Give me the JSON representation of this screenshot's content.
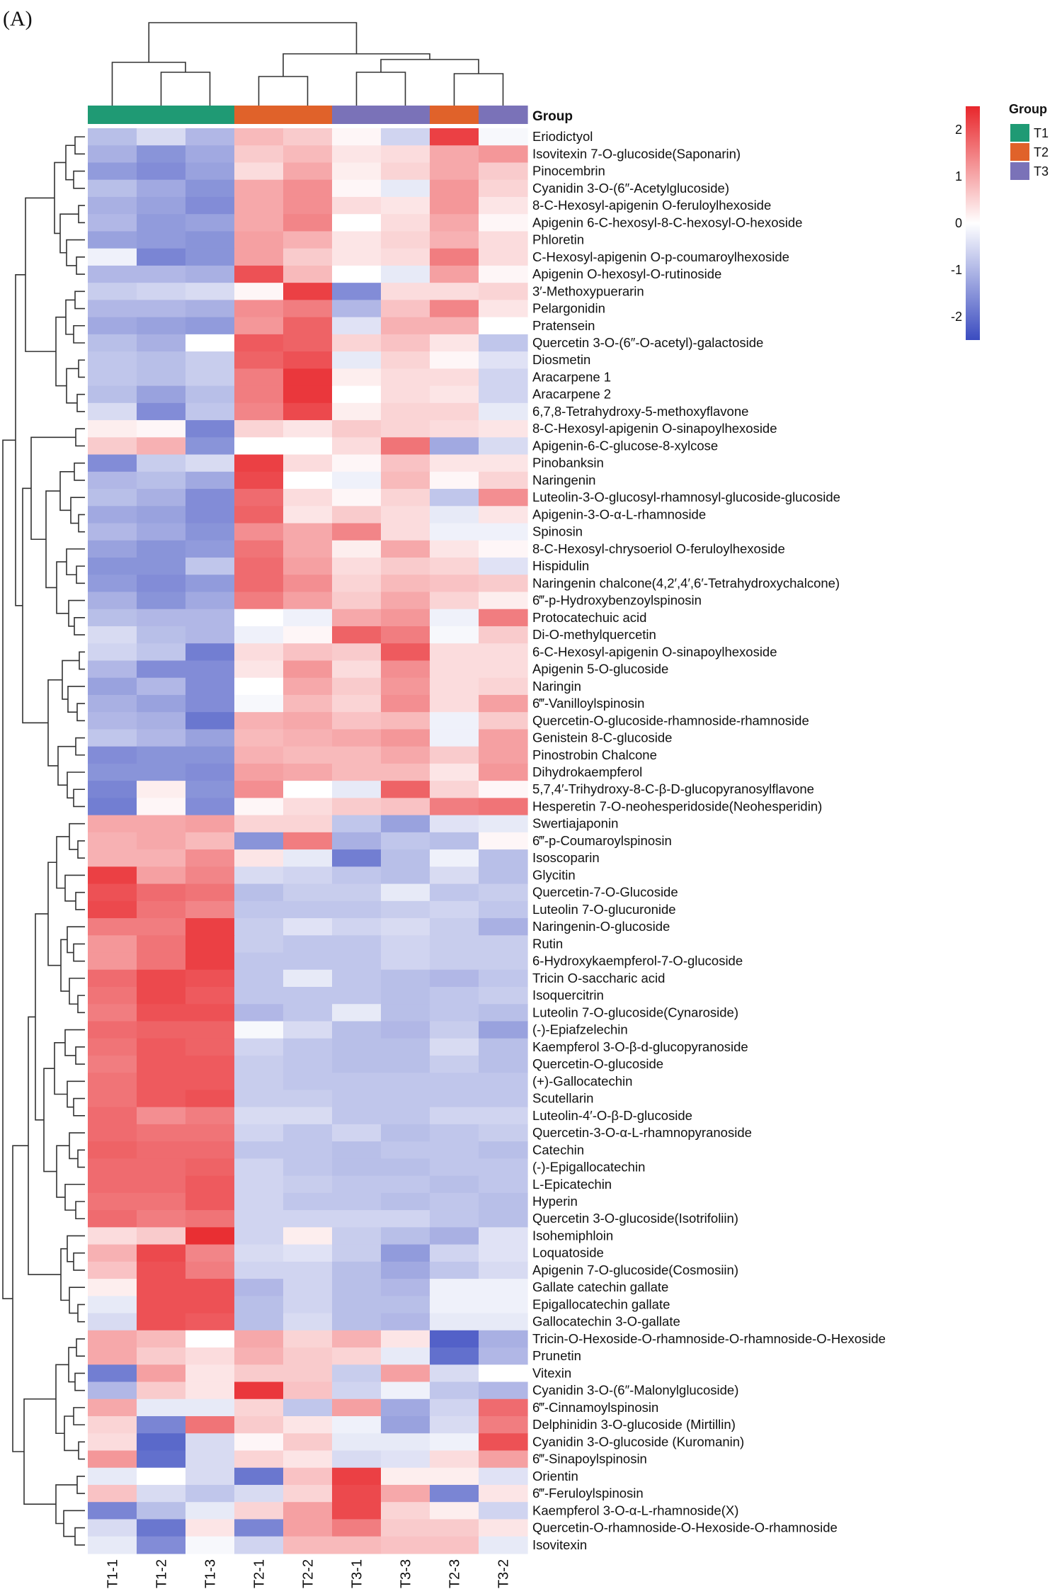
{
  "panel_label": "(A)",
  "chart_data": {
    "type": "heatmap",
    "title": "",
    "xlabel": "",
    "ylabel": "",
    "columns": [
      "T1-1",
      "T1-2",
      "T1-3",
      "T2-1",
      "T2-2",
      "T3-1",
      "T3-3",
      "T2-3",
      "T3-2"
    ],
    "column_groups": [
      "T1",
      "T1",
      "T1",
      "T2",
      "T2",
      "T3",
      "T3",
      "T2",
      "T3"
    ],
    "group_bar_label": "Group",
    "groups": [
      {
        "name": "T1",
        "color": "#1f9a74"
      },
      {
        "name": "T2",
        "color": "#e0622a"
      },
      {
        "name": "T3",
        "color": "#7a72b8"
      }
    ],
    "group_legend_title": "Group",
    "color_scale": {
      "min": -2.5,
      "max": 2.5,
      "ticks": [
        2,
        1,
        0,
        -1,
        -2
      ],
      "tick_labels": [
        "2",
        "1",
        "0",
        "-1",
        "-2"
      ],
      "low_color": "#3b4cc0",
      "mid_color": "#ffffff",
      "high_color": "#e8262b"
    },
    "legend_placement": "top-right",
    "row_dendrogram": true,
    "column_dendrogram": true,
    "rows": [
      "Eriodictyol",
      "Isovitexin 7-O-glucoside(Saponarin)",
      "Pinocembrin",
      "Cyanidin 3-O-(6″-Acetylglucoside)",
      "8-C-Hexosyl-apigenin O-feruloylhexoside",
      "Apigenin 6-C-hexosyl-8-C-hexosyl-O-hexoside",
      "Phloretin",
      "C-Hexosyl-apigenin O-p-coumaroylhexoside",
      "Apigenin O-hexosyl-O-rutinoside",
      "3′-Methoxypuerarin",
      "Pelargonidin",
      "Pratensein",
      "Quercetin 3-O-(6″-O-acetyl)-galactoside",
      "Diosmetin",
      "Aracarpene 1",
      "Aracarpene 2",
      "6,7,8-Tetrahydroxy-5-methoxyflavone",
      "8-C-Hexosyl-apigenin O-sinapoylhexoside",
      "Apigenin-6-C-glucose-8-xylcose",
      "Pinobanksin",
      "Naringenin",
      "Luteolin-3-O-glucosyl-rhamnosyl-glucoside-glucoside",
      "Apigenin-3-O-α-L-rhamnoside",
      "Spinosin",
      "8-C-Hexosyl-chrysoeriol O-feruloylhexoside",
      "Hispidulin",
      "Naringenin chalcone(4,2′,4′,6′-Tetrahydroxychalcone)",
      "6‴-p-Hydroxybenzoylspinosin",
      "Protocatechuic acid",
      "Di-O-methylquercetin",
      "6-C-Hexosyl-apigenin O-sinapoylhexoside",
      "Apigenin 5-O-glucoside",
      "Naringin",
      "6‴-Vanilloylspinosin",
      "Quercetin-O-glucoside-rhamnoside-rhamnoside",
      "Genistein 8-C-glucoside",
      "Pinostrobin Chalcone",
      "Dihydrokaempferol",
      "5,7,4′-Trihydroxy-8-C-β-D-glucopyranosylflavone",
      "Hesperetin 7-O-neohesperidoside(Neohesperidin)",
      "Swertiajaponin",
      "6‴-p-Coumaroylspinosin",
      "Isoscoparin",
      "Glycitin",
      "Quercetin-7-O-Glucoside",
      "Luteolin 7-O-glucuronide",
      "Naringenin-O-glucoside",
      "Rutin",
      "6-Hydroxykaempferol-7-O-glucoside",
      "Tricin O-saccharic acid",
      "Isoquercitrin",
      "Luteolin 7-O-glucoside(Cynaroside)",
      "(-)-Epiafzelechin",
      "Kaempferol 3-O-β-d-glucopyranoside",
      "Quercetin-O-glucoside",
      "(+)-Gallocatechin",
      "Scutellarin",
      "Luteolin-4′-O-β-D-glucoside",
      "Quercetin-3-O-α-L-rhamnopyranoside",
      "Catechin",
      "(-)-Epigallocatechin",
      "L-Epicatechin",
      "Hyperin",
      "Quercetin 3-O-glucoside(Isotrifoliin)",
      "Isohemiphloin",
      "Loquatoside",
      "Apigenin 7-O-glucoside(Cosmosiin)",
      "Gallate catechin gallate",
      "Epigallocatechin gallate",
      "Gallocatechin 3-O-gallate",
      "Tricin-O-Hexoside-O-rhamnoside-O-rhamnoside-O-Hexoside",
      "Prunetin",
      "Vitexin",
      "Cyanidin 3-O-(6″-Malonylglucoside)",
      "6‴-Cinnamoylspinosin",
      "Delphinidin 3-O-glucoside (Mirtillin)",
      "Cyanidin 3-O-glucoside (Kuromanin)",
      "6‴-Sinapoylspinosin",
      "Orientin",
      "6‴-Feruloylspinosin",
      "Kaempferol 3-O-α-L-rhamnoside(X)",
      "Quercetin-O-rhamnoside-O-Hexoside-O-rhamnoside",
      "Isovitexin"
    ],
    "values": [
      [
        -0.9,
        -0.5,
        -1.0,
        0.8,
        0.6,
        0.1,
        -0.6,
        2.2,
        -0.1
      ],
      [
        -1.1,
        -1.5,
        -1.2,
        0.6,
        0.8,
        0.3,
        0.4,
        1.0,
        1.2
      ],
      [
        -1.4,
        -1.6,
        -1.3,
        0.4,
        1.0,
        0.2,
        0.5,
        1.0,
        0.6
      ],
      [
        -0.9,
        -1.2,
        -1.5,
        1.0,
        1.3,
        0.1,
        -0.3,
        1.2,
        0.5
      ],
      [
        -1.1,
        -1.3,
        -1.6,
        1.0,
        1.3,
        0.4,
        0.3,
        1.2,
        0.3
      ],
      [
        -1.0,
        -1.4,
        -1.3,
        1.0,
        1.4,
        0.0,
        0.4,
        1.0,
        0.1
      ],
      [
        -1.3,
        -1.4,
        -1.5,
        1.1,
        0.9,
        0.3,
        0.5,
        0.9,
        0.4
      ],
      [
        -0.2,
        -1.7,
        -1.5,
        1.1,
        0.6,
        0.3,
        0.4,
        1.5,
        0.4
      ],
      [
        -1.0,
        -1.0,
        -1.1,
        2.0,
        0.8,
        0.0,
        -0.3,
        1.1,
        0.1
      ],
      [
        -0.7,
        -0.6,
        -0.5,
        0.1,
        2.2,
        -1.6,
        0.4,
        0.4,
        0.5
      ],
      [
        -1.0,
        -1.0,
        -1.1,
        1.3,
        1.5,
        -1.0,
        0.7,
        1.4,
        0.3
      ],
      [
        -1.2,
        -1.3,
        -1.4,
        1.2,
        1.8,
        -0.4,
        0.9,
        0.9,
        0.0
      ],
      [
        -0.9,
        -1.1,
        0.0,
        1.9,
        1.8,
        0.5,
        0.7,
        0.3,
        -0.8
      ],
      [
        -0.8,
        -0.9,
        -0.7,
        1.8,
        2.0,
        -0.3,
        0.5,
        0.1,
        -0.4
      ],
      [
        -0.8,
        -0.9,
        -0.7,
        1.5,
        2.3,
        0.2,
        0.4,
        0.4,
        -0.6
      ],
      [
        -0.9,
        -1.3,
        -0.9,
        1.5,
        2.3,
        0.0,
        0.4,
        0.3,
        -0.6
      ],
      [
        -0.5,
        -1.6,
        -0.8,
        1.4,
        2.1,
        0.2,
        0.5,
        0.5,
        -0.3
      ],
      [
        0.2,
        0.1,
        -1.7,
        0.5,
        0.3,
        0.6,
        0.5,
        0.4,
        0.3
      ],
      [
        0.6,
        0.9,
        -1.5,
        0.0,
        0.0,
        0.4,
        1.6,
        -1.2,
        -0.5
      ],
      [
        -1.6,
        -0.7,
        -0.5,
        2.2,
        0.4,
        0.1,
        0.7,
        0.3,
        0.3
      ],
      [
        -1.0,
        -0.9,
        -1.2,
        2.1,
        0.0,
        -0.2,
        0.8,
        0.1,
        0.5
      ],
      [
        -0.9,
        -1.1,
        -1.6,
        1.7,
        0.4,
        0.1,
        0.5,
        -0.8,
        1.3
      ],
      [
        -1.2,
        -1.3,
        -1.6,
        1.8,
        0.3,
        0.6,
        0.4,
        -0.3,
        0.3
      ],
      [
        -1.0,
        -1.2,
        -1.5,
        1.3,
        1.0,
        1.4,
        0.4,
        -0.2,
        -0.2
      ],
      [
        -1.3,
        -1.5,
        -1.4,
        1.6,
        1.0,
        0.2,
        1.0,
        0.3,
        0.1
      ],
      [
        -1.5,
        -1.5,
        -0.8,
        1.7,
        1.1,
        0.4,
        0.6,
        0.5,
        -0.4
      ],
      [
        -1.4,
        -1.6,
        -1.4,
        1.7,
        1.3,
        0.5,
        0.8,
        0.7,
        0.6
      ],
      [
        -1.1,
        -1.5,
        -1.2,
        1.5,
        1.1,
        0.6,
        1.0,
        0.5,
        0.2
      ],
      [
        -0.9,
        -1.0,
        -1.0,
        0.0,
        -0.2,
        1.0,
        1.2,
        -0.2,
        1.5
      ],
      [
        -0.5,
        -0.9,
        -1.0,
        -0.2,
        0.1,
        1.8,
        1.5,
        -0.1,
        0.6
      ],
      [
        -0.6,
        -0.8,
        -1.8,
        0.4,
        0.7,
        0.6,
        1.9,
        0.4,
        0.4
      ],
      [
        -1.0,
        -1.6,
        -1.6,
        0.3,
        1.2,
        0.4,
        1.3,
        0.4,
        0.4
      ],
      [
        -1.3,
        -1.0,
        -1.6,
        0.0,
        1.0,
        0.6,
        1.2,
        0.4,
        0.5
      ],
      [
        -1.1,
        -1.3,
        -1.6,
        -0.1,
        0.8,
        0.5,
        1.3,
        0.4,
        1.1
      ],
      [
        -1.0,
        -1.1,
        -1.9,
        0.9,
        1.0,
        0.7,
        0.8,
        -0.2,
        0.6
      ],
      [
        -0.8,
        -1.0,
        -1.3,
        0.8,
        0.9,
        1.0,
        1.2,
        -0.2,
        1.1
      ],
      [
        -1.6,
        -1.5,
        -1.5,
        0.9,
        0.8,
        0.8,
        1.0,
        0.6,
        1.1
      ],
      [
        -1.5,
        -1.5,
        -1.6,
        1.1,
        1.0,
        0.8,
        0.8,
        0.3,
        1.2
      ],
      [
        -1.7,
        0.2,
        -1.5,
        1.3,
        0.0,
        -0.3,
        1.8,
        0.5,
        0.1
      ],
      [
        -1.8,
        0.1,
        -1.6,
        0.1,
        0.4,
        0.6,
        0.7,
        1.5,
        1.6
      ],
      [
        1.0,
        1.0,
        1.1,
        0.5,
        0.5,
        -0.8,
        -1.3,
        -0.4,
        -0.3
      ],
      [
        0.9,
        1.0,
        0.8,
        -1.5,
        1.5,
        -1.1,
        -0.8,
        -0.9,
        0.1
      ],
      [
        0.9,
        0.9,
        1.3,
        0.3,
        -0.3,
        -1.8,
        -0.9,
        -0.2,
        -0.9
      ],
      [
        2.2,
        1.1,
        1.4,
        -0.5,
        -0.6,
        -0.8,
        -0.9,
        -0.5,
        -0.9
      ],
      [
        2.0,
        1.7,
        1.6,
        -0.9,
        -0.7,
        -0.7,
        -0.3,
        -0.8,
        -0.7
      ],
      [
        2.1,
        1.6,
        1.4,
        -0.8,
        -0.8,
        -0.8,
        -0.7,
        -0.6,
        -0.8
      ],
      [
        1.5,
        1.5,
        2.2,
        -0.7,
        -0.4,
        -0.6,
        -0.5,
        -0.7,
        -1.1
      ],
      [
        1.2,
        1.6,
        2.2,
        -0.7,
        -0.8,
        -0.8,
        -0.6,
        -0.7,
        -0.7
      ],
      [
        1.2,
        1.6,
        2.2,
        -0.8,
        -0.8,
        -0.8,
        -0.6,
        -0.7,
        -0.7
      ],
      [
        1.7,
        2.1,
        2.0,
        -0.8,
        -0.3,
        -0.8,
        -0.9,
        -1.0,
        -0.8
      ],
      [
        1.6,
        2.1,
        1.9,
        -0.8,
        -0.8,
        -0.8,
        -0.9,
        -0.8,
        -0.7
      ],
      [
        1.5,
        2.0,
        2.0,
        -1.0,
        -0.8,
        -0.3,
        -0.9,
        -0.8,
        -0.9
      ],
      [
        1.7,
        1.8,
        1.8,
        -0.1,
        -0.5,
        -0.9,
        -1.0,
        -0.7,
        -1.3
      ],
      [
        1.6,
        1.9,
        1.8,
        -0.6,
        -0.8,
        -0.9,
        -0.9,
        -0.5,
        -0.9
      ],
      [
        1.5,
        1.9,
        1.9,
        -0.7,
        -0.8,
        -0.9,
        -0.9,
        -0.7,
        -0.9
      ],
      [
        1.6,
        1.9,
        1.9,
        -0.7,
        -0.8,
        -0.8,
        -0.8,
        -0.8,
        -0.8
      ],
      [
        1.6,
        1.9,
        2.0,
        -0.7,
        -0.7,
        -0.8,
        -0.8,
        -0.8,
        -0.8
      ],
      [
        1.7,
        1.3,
        1.5,
        -0.5,
        -0.5,
        -0.8,
        -0.8,
        -0.6,
        -0.6
      ],
      [
        1.7,
        1.6,
        1.6,
        -0.6,
        -0.8,
        -0.6,
        -0.9,
        -0.8,
        -0.7
      ],
      [
        1.8,
        1.7,
        1.7,
        -0.8,
        -0.8,
        -0.9,
        -0.8,
        -0.8,
        -0.9
      ],
      [
        1.7,
        1.7,
        1.8,
        -0.6,
        -0.8,
        -0.9,
        -0.9,
        -0.8,
        -0.8
      ],
      [
        1.7,
        1.7,
        1.9,
        -0.6,
        -0.7,
        -0.8,
        -0.8,
        -0.9,
        -0.8
      ],
      [
        1.6,
        1.6,
        1.9,
        -0.6,
        -0.8,
        -0.8,
        -0.9,
        -0.8,
        -0.9
      ],
      [
        1.7,
        1.5,
        1.6,
        -0.6,
        -0.6,
        -0.6,
        -0.6,
        -0.8,
        -0.9
      ],
      [
        0.4,
        0.6,
        2.4,
        -0.6,
        0.2,
        -0.7,
        -0.9,
        -1.1,
        -0.4
      ],
      [
        0.9,
        2.1,
        1.4,
        -0.5,
        -0.4,
        -0.7,
        -1.4,
        -0.6,
        -0.4
      ],
      [
        0.7,
        2.0,
        1.5,
        -0.6,
        -0.6,
        -0.9,
        -1.2,
        -0.8,
        -0.5
      ],
      [
        0.2,
        2.0,
        2.0,
        -1.0,
        -0.6,
        -0.9,
        -1.0,
        -0.2,
        -0.2
      ],
      [
        -0.3,
        2.0,
        2.0,
        -0.9,
        -0.6,
        -0.9,
        -0.9,
        -0.2,
        -0.2
      ],
      [
        -0.5,
        2.0,
        1.9,
        -0.9,
        -0.5,
        -0.9,
        -1.0,
        -0.3,
        -0.3
      ],
      [
        1.0,
        0.8,
        0.0,
        1.0,
        0.5,
        0.9,
        0.3,
        -2.2,
        -1.1
      ],
      [
        1.0,
        0.6,
        0.4,
        0.9,
        0.6,
        0.5,
        -0.3,
        -2.0,
        -1.0
      ],
      [
        -1.8,
        1.1,
        0.3,
        0.6,
        0.6,
        -0.7,
        1.1,
        -0.5,
        0.0
      ],
      [
        -1.0,
        0.6,
        0.3,
        2.3,
        0.7,
        -0.6,
        -0.2,
        -0.8,
        -1.0
      ],
      [
        1.0,
        -0.3,
        -0.3,
        0.5,
        -0.8,
        1.1,
        -1.2,
        -0.6,
        1.7
      ],
      [
        0.5,
        -1.7,
        1.6,
        0.6,
        0.3,
        -0.2,
        -1.3,
        -0.5,
        1.5
      ],
      [
        0.4,
        -2.1,
        -0.5,
        0.1,
        0.6,
        -0.3,
        -0.3,
        -0.2,
        2.0
      ],
      [
        1.2,
        -2.0,
        -0.5,
        0.5,
        0.3,
        -0.5,
        -0.4,
        0.4,
        1.1
      ],
      [
        -0.3,
        0.0,
        -0.5,
        -1.9,
        0.7,
        2.2,
        0.2,
        0.2,
        -0.4
      ],
      [
        0.7,
        -0.5,
        -0.8,
        -0.5,
        0.5,
        2.1,
        1.0,
        -1.7,
        0.3
      ],
      [
        -1.7,
        -0.9,
        -0.3,
        0.5,
        1.1,
        2.1,
        0.5,
        0.2,
        -0.6
      ],
      [
        -0.5,
        -1.9,
        0.3,
        -1.7,
        1.1,
        1.5,
        0.6,
        0.6,
        0.3
      ],
      [
        -0.3,
        -1.6,
        -0.1,
        -0.6,
        0.8,
        0.8,
        0.7,
        0.7,
        -0.3
      ]
    ]
  }
}
